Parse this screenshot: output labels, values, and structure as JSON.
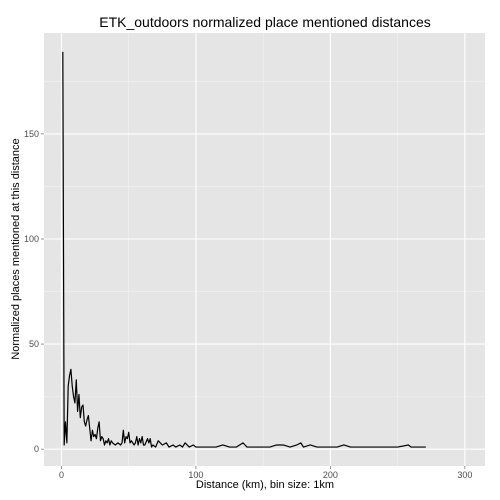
{
  "chart_data": {
    "type": "line",
    "title": "ETK_outdoors normalized place mentioned distances",
    "xlabel": "Distance (km), bin size: 1km",
    "ylabel": "Normalized places mentioned at this distance",
    "xlim": [
      -13,
      315
    ],
    "ylim": [
      -8,
      198
    ],
    "x_ticks": [
      0,
      100,
      200,
      300
    ],
    "y_ticks": [
      0,
      50,
      100,
      150
    ],
    "x_tick_labels": [
      "0",
      "100",
      "200",
      "300"
    ],
    "y_tick_labels": [
      "0",
      "50",
      "100",
      "150"
    ],
    "grid": true,
    "colors": {
      "panel": "#e5e5e5",
      "grid_major": "#ffffff",
      "grid_minor": "#f2f2f2",
      "line": "#000000",
      "tick_text": "#4d4d4d"
    },
    "series": [
      {
        "x": [
          1,
          2,
          3,
          4,
          5,
          6,
          7,
          8,
          9,
          10,
          11,
          12,
          13,
          14,
          15,
          16,
          17,
          18,
          19,
          20,
          21,
          22,
          23,
          24,
          25,
          26,
          27,
          28,
          29,
          30,
          31,
          32,
          33,
          34,
          35,
          36,
          37,
          38,
          40,
          42,
          44,
          45,
          46,
          47,
          48,
          49,
          50,
          51,
          52,
          54,
          55,
          56,
          57,
          58,
          59,
          60,
          61,
          62,
          64,
          65,
          66,
          67,
          68,
          70,
          72,
          75,
          78,
          80,
          83,
          85,
          88,
          90,
          92,
          95,
          98,
          100,
          105,
          110,
          115,
          120,
          125,
          130,
          135,
          138,
          142,
          145,
          150,
          155,
          160,
          165,
          170,
          175,
          178,
          180,
          185,
          190,
          195,
          200,
          205,
          210,
          215,
          220,
          230,
          240,
          250,
          258,
          260,
          265,
          271
        ],
        "y": [
          189,
          2,
          13,
          3,
          30,
          35,
          38,
          30,
          25,
          22,
          33,
          18,
          26,
          15,
          20,
          21,
          13,
          11,
          14,
          16,
          10,
          4,
          9,
          6,
          7,
          5,
          10,
          13,
          4,
          6,
          5,
          2,
          4,
          3,
          5,
          2,
          4,
          3,
          2,
          3,
          2,
          3,
          9,
          3,
          6,
          5,
          8,
          3,
          4,
          2,
          3,
          6,
          2,
          5,
          3,
          6,
          2,
          2,
          5,
          3,
          5,
          1,
          2,
          1,
          4,
          2,
          3,
          1,
          2,
          1,
          2,
          1,
          3,
          1,
          2,
          1,
          1,
          1,
          1,
          2,
          1,
          1,
          3,
          1,
          1,
          1,
          1,
          1,
          2,
          2,
          1,
          2,
          3,
          1,
          2,
          1,
          1,
          1,
          1,
          2,
          1,
          1,
          1,
          1,
          1,
          2,
          1,
          1,
          1
        ]
      }
    ]
  }
}
